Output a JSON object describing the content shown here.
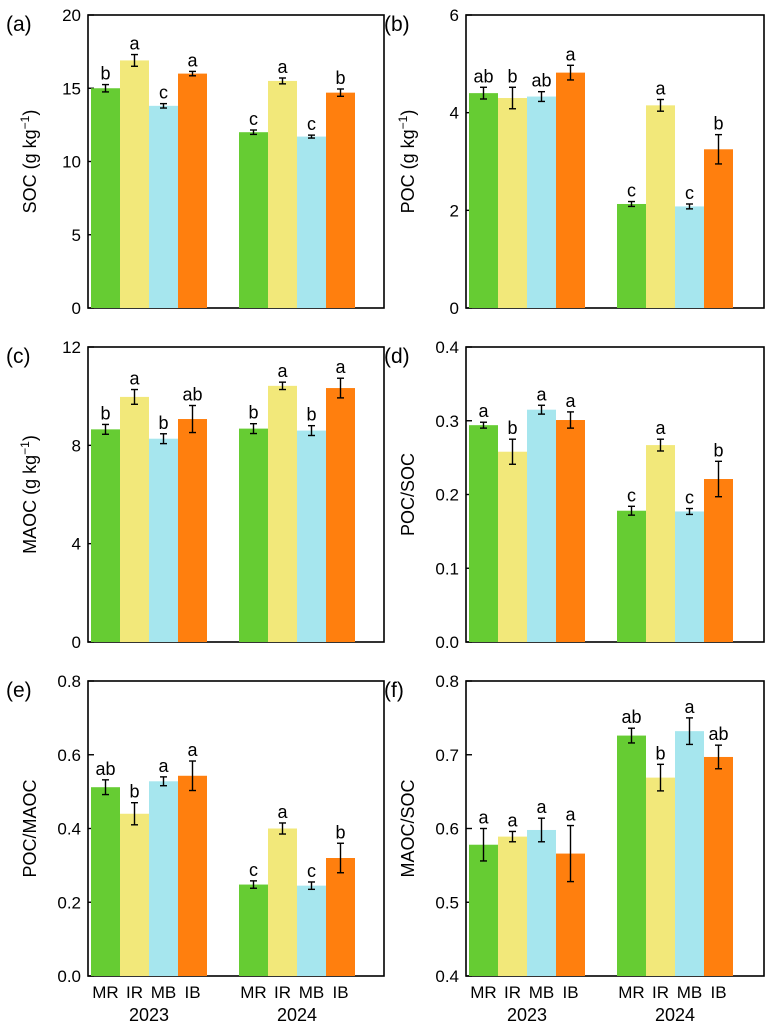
{
  "colors": {
    "MR": "#66cc33",
    "IR": "#f2e87a",
    "MB": "#a6e6ee",
    "IB": "#ff7f0e"
  },
  "chart_data": [
    {
      "panel": "(a)",
      "type": "bar",
      "ylabel": "SOC (g kg",
      "ylabel_sup": "−1",
      "ylabel_close": ")",
      "ylim": [
        0,
        20
      ],
      "yticks": [
        0,
        5,
        10,
        15,
        20
      ],
      "ytick_labels": [
        "0",
        "5",
        "10",
        "15",
        "20"
      ],
      "groups": [
        "2023",
        "2024"
      ],
      "show_xlabels": false,
      "series": [
        {
          "name": "MR",
          "values": [
            15.0,
            12.0
          ],
          "errors": [
            0.25,
            0.15
          ],
          "letters": [
            "b",
            "c"
          ]
        },
        {
          "name": "IR",
          "values": [
            16.9,
            15.5
          ],
          "errors": [
            0.4,
            0.2
          ],
          "letters": [
            "a",
            "a"
          ]
        },
        {
          "name": "MB",
          "values": [
            13.8,
            11.7
          ],
          "errors": [
            0.15,
            0.1
          ],
          "letters": [
            "c",
            "c"
          ]
        },
        {
          "name": "IB",
          "values": [
            16.0,
            14.7
          ],
          "errors": [
            0.15,
            0.25
          ],
          "letters": [
            "a",
            "b"
          ]
        }
      ]
    },
    {
      "panel": "(b)",
      "type": "bar",
      "ylabel": "POC (g kg",
      "ylabel_sup": "−1",
      "ylabel_close": ")",
      "ylim": [
        0,
        6
      ],
      "yticks": [
        0,
        2,
        4,
        6
      ],
      "ytick_labels": [
        "0",
        "2",
        "4",
        "6"
      ],
      "groups": [
        "2023",
        "2024"
      ],
      "show_xlabels": false,
      "series": [
        {
          "name": "MR",
          "values": [
            4.4,
            2.13
          ],
          "errors": [
            0.12,
            0.05
          ],
          "letters": [
            "ab",
            "c"
          ]
        },
        {
          "name": "IR",
          "values": [
            4.3,
            4.15
          ],
          "errors": [
            0.22,
            0.12
          ],
          "letters": [
            "b",
            "a"
          ]
        },
        {
          "name": "MB",
          "values": [
            4.33,
            2.08
          ],
          "errors": [
            0.1,
            0.05
          ],
          "letters": [
            "ab",
            "c"
          ]
        },
        {
          "name": "IB",
          "values": [
            4.82,
            3.25
          ],
          "errors": [
            0.15,
            0.3
          ],
          "letters": [
            "a",
            "b"
          ]
        }
      ]
    },
    {
      "panel": "(c)",
      "type": "bar",
      "ylabel": "MAOC (g kg",
      "ylabel_sup": "−1",
      "ylabel_close": ")",
      "ylim": [
        0,
        12
      ],
      "yticks": [
        0,
        4,
        8,
        12
      ],
      "ytick_labels": [
        "0",
        "4",
        "8",
        "12"
      ],
      "groups": [
        "2023",
        "2024"
      ],
      "show_xlabels": false,
      "series": [
        {
          "name": "MR",
          "values": [
            8.65,
            8.68
          ],
          "errors": [
            0.2,
            0.2
          ],
          "letters": [
            "b",
            "b"
          ]
        },
        {
          "name": "IR",
          "values": [
            9.97,
            10.42
          ],
          "errors": [
            0.3,
            0.15
          ],
          "letters": [
            "a",
            "a"
          ]
        },
        {
          "name": "MB",
          "values": [
            8.27,
            8.6
          ],
          "errors": [
            0.2,
            0.2
          ],
          "letters": [
            "b",
            "b"
          ]
        },
        {
          "name": "IB",
          "values": [
            9.07,
            10.33
          ],
          "errors": [
            0.55,
            0.4
          ],
          "letters": [
            "ab",
            "a"
          ]
        }
      ]
    },
    {
      "panel": "(d)",
      "type": "bar",
      "ylabel": "POC/SOC",
      "ylabel_sup": "",
      "ylabel_close": "",
      "ylim": [
        0,
        0.4
      ],
      "yticks": [
        0,
        0.1,
        0.2,
        0.3,
        0.4
      ],
      "ytick_labels": [
        "0.0",
        "0.1",
        "0.2",
        "0.3",
        "0.4"
      ],
      "groups": [
        "2023",
        "2024"
      ],
      "show_xlabels": false,
      "series": [
        {
          "name": "MR",
          "values": [
            0.294,
            0.178
          ],
          "errors": [
            0.004,
            0.006
          ],
          "letters": [
            "a",
            "c"
          ]
        },
        {
          "name": "IR",
          "values": [
            0.258,
            0.267
          ],
          "errors": [
            0.017,
            0.008
          ],
          "letters": [
            "b",
            "a"
          ]
        },
        {
          "name": "MB",
          "values": [
            0.315,
            0.177
          ],
          "errors": [
            0.006,
            0.004
          ],
          "letters": [
            "a",
            "c"
          ]
        },
        {
          "name": "IB",
          "values": [
            0.301,
            0.221
          ],
          "errors": [
            0.011,
            0.024
          ],
          "letters": [
            "a",
            "b"
          ]
        }
      ]
    },
    {
      "panel": "(e)",
      "type": "bar",
      "ylabel": "POC/MAOC",
      "ylabel_sup": "",
      "ylabel_close": "",
      "ylim": [
        0,
        0.8
      ],
      "yticks": [
        0,
        0.2,
        0.4,
        0.6,
        0.8
      ],
      "ytick_labels": [
        "0.0",
        "0.2",
        "0.4",
        "0.6",
        "0.8"
      ],
      "groups": [
        "2023",
        "2024"
      ],
      "show_xlabels": true,
      "xtick_labels": [
        "MR",
        "IR",
        "MB",
        "IB"
      ],
      "series": [
        {
          "name": "MR",
          "values": [
            0.512,
            0.248
          ],
          "errors": [
            0.02,
            0.01
          ],
          "letters": [
            "ab",
            "c"
          ]
        },
        {
          "name": "IR",
          "values": [
            0.44,
            0.4
          ],
          "errors": [
            0.03,
            0.015
          ],
          "letters": [
            "b",
            "a"
          ]
        },
        {
          "name": "MB",
          "values": [
            0.528,
            0.245
          ],
          "errors": [
            0.012,
            0.01
          ],
          "letters": [
            "a",
            "c"
          ]
        },
        {
          "name": "IB",
          "values": [
            0.543,
            0.32
          ],
          "errors": [
            0.04,
            0.04
          ],
          "letters": [
            "a",
            "b"
          ]
        }
      ]
    },
    {
      "panel": "(f)",
      "type": "bar",
      "ylabel": "MAOC/SOC",
      "ylabel_sup": "",
      "ylabel_close": "",
      "ylim": [
        0.4,
        0.8
      ],
      "yticks": [
        0.4,
        0.5,
        0.6,
        0.7,
        0.8
      ],
      "ytick_labels": [
        "0.4",
        "0.5",
        "0.6",
        "0.7",
        "0.8"
      ],
      "groups": [
        "2023",
        "2024"
      ],
      "show_xlabels": true,
      "xtick_labels": [
        "MR",
        "IR",
        "MB",
        "IB"
      ],
      "series": [
        {
          "name": "MR",
          "values": [
            0.578,
            0.726
          ],
          "errors": [
            0.022,
            0.01
          ],
          "letters": [
            "a",
            "ab"
          ]
        },
        {
          "name": "IR",
          "values": [
            0.589,
            0.669
          ],
          "errors": [
            0.007,
            0.018
          ],
          "letters": [
            "a",
            "b"
          ]
        },
        {
          "name": "MB",
          "values": [
            0.598,
            0.732
          ],
          "errors": [
            0.016,
            0.018
          ],
          "letters": [
            "a",
            "a"
          ]
        },
        {
          "name": "IB",
          "values": [
            0.566,
            0.697
          ],
          "errors": [
            0.038,
            0.016
          ],
          "letters": [
            "a",
            "ab"
          ]
        }
      ]
    }
  ]
}
